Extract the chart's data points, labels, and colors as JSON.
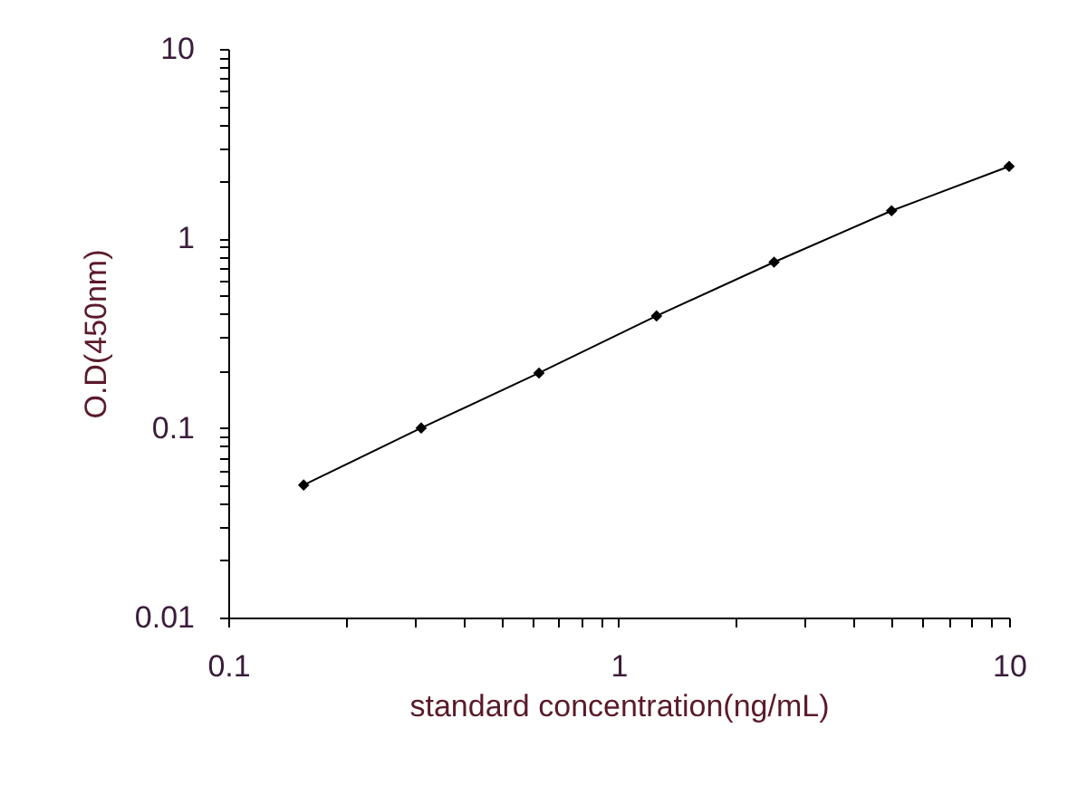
{
  "chart_data": {
    "type": "line",
    "xlabel": "standard concentration(ng/mL)",
    "ylabel": "O.D(450nm)",
    "x": [
      0.156,
      0.312,
      0.625,
      1.25,
      2.5,
      5,
      10
    ],
    "series": [
      {
        "color": "#000000",
        "values": [
          0.05,
          0.1,
          0.195,
          0.39,
          0.75,
          1.4,
          2.4
        ]
      }
    ],
    "log": "xy",
    "grid": false,
    "marker": "diamond",
    "line_style": "solid",
    "xlim": [
      0.1,
      10
    ],
    "ylim": [
      0.01,
      10
    ],
    "xticks": [
      0.1,
      {
        "value": 0.2,
        "label": null
      },
      {
        "value": 0.3,
        "label": null
      },
      {
        "value": 0.4,
        "label": null
      },
      {
        "value": 0.5,
        "label": null
      },
      {
        "value": 0.6,
        "label": null
      },
      {
        "value": 0.7,
        "label": null
      },
      {
        "value": 0.8,
        "label": null
      },
      {
        "value": 0.9,
        "label": null
      },
      1,
      {
        "value": 2,
        "label": null
      },
      {
        "value": 3,
        "label": null
      },
      {
        "value": 4,
        "label": null
      },
      {
        "value": 5,
        "label": null
      },
      {
        "value": 6,
        "label": null
      },
      {
        "value": 7,
        "label": null
      },
      {
        "value": 8,
        "label": null
      },
      {
        "value": 9,
        "label": null
      },
      10
    ],
    "yticks": [
      0.01,
      {
        "value": 0.02,
        "label": null
      },
      {
        "value": 0.03,
        "label": null
      },
      {
        "value": 0.04,
        "label": null
      },
      {
        "value": 0.05,
        "label": null
      },
      {
        "value": 0.06,
        "label": null
      },
      {
        "value": 0.07,
        "label": null
      },
      {
        "value": 0.08,
        "label": null
      },
      {
        "value": 0.09,
        "label": null
      },
      0.1,
      {
        "value": 0.2,
        "label": null
      },
      {
        "value": 0.3,
        "label": null
      },
      {
        "value": 0.4,
        "label": null
      },
      {
        "value": 0.5,
        "label": null
      },
      {
        "value": 0.6,
        "label": null
      },
      {
        "value": 0.7,
        "label": null
      },
      {
        "value": 0.8,
        "label": null
      },
      {
        "value": 0.9,
        "label": null
      },
      1,
      {
        "value": 2,
        "label": null
      },
      {
        "value": 3,
        "label": null
      },
      {
        "value": 4,
        "label": null
      },
      {
        "value": 5,
        "label": null
      },
      {
        "value": 6,
        "label": null
      },
      {
        "value": 7,
        "label": null
      },
      {
        "value": 8,
        "label": null
      },
      {
        "value": 9,
        "label": null
      },
      10
    ]
  }
}
